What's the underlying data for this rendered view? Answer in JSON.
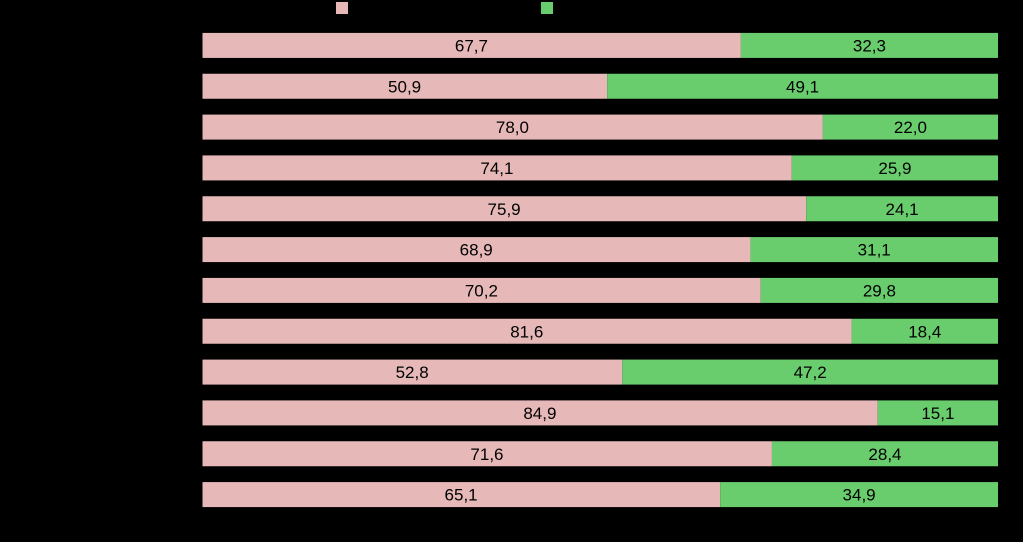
{
  "chart_data": {
    "type": "bar",
    "orientation": "horizontal",
    "stacked": true,
    "percent_stacked": true,
    "title": "",
    "xlabel": "",
    "ylabel": "",
    "xlim": [
      0,
      100
    ],
    "legend_position": "top",
    "categories": [
      "",
      "",
      "",
      "",
      "",
      "",
      "",
      "",
      "",
      "",
      "",
      ""
    ],
    "series": [
      {
        "name": "",
        "color": "#E6B9B8",
        "values": [
          67.7,
          50.9,
          78.0,
          74.1,
          75.9,
          68.9,
          70.2,
          81.6,
          52.8,
          84.9,
          71.6,
          65.1
        ],
        "labels": [
          "67,7",
          "50,9",
          "78,0",
          "74,1",
          "75,9",
          "68,9",
          "70,2",
          "81,6",
          "52,8",
          "84,9",
          "71,6",
          "65,1"
        ]
      },
      {
        "name": "",
        "color": "#6ACD6D",
        "values": [
          32.3,
          49.1,
          22.0,
          25.9,
          24.1,
          31.1,
          29.8,
          18.4,
          47.2,
          15.1,
          28.4,
          34.9
        ],
        "labels": [
          "32,3",
          "49,1",
          "22,0",
          "25,9",
          "24,1",
          "31,1",
          "29,8",
          "18,4",
          "47,2",
          "15,1",
          "28,4",
          "34,9"
        ]
      }
    ]
  },
  "colors": {
    "background": "#000000",
    "axis": "#000000"
  }
}
